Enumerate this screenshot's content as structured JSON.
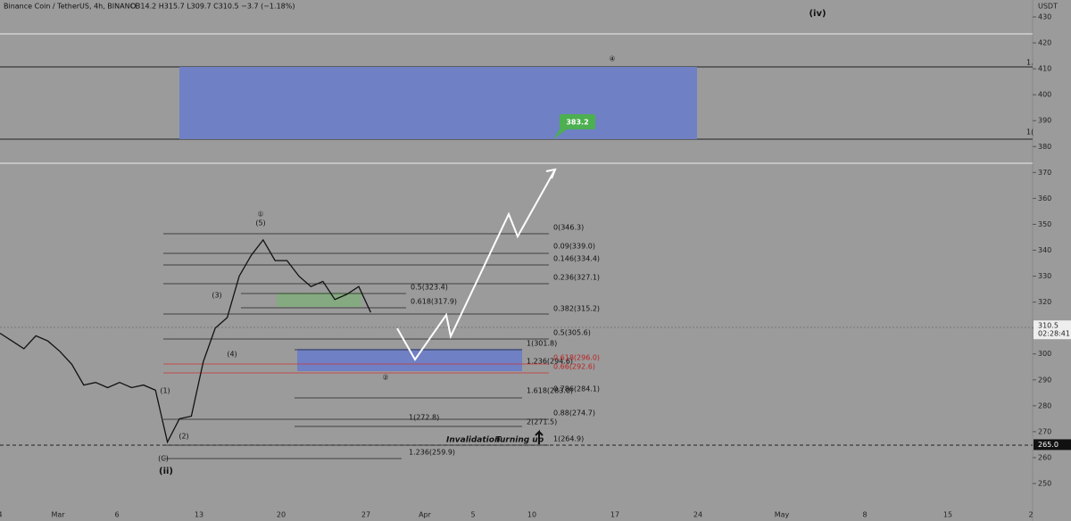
{
  "header": {
    "symbol": "Binance Coin / TetherUS, 4h, BINANCE",
    "ohlc": "O314.2 H315.7 L309.7 C310.5 −3.7 (−1.18%)"
  },
  "price_axis": {
    "unit": "USDT",
    "ylim": [
      250,
      430
    ],
    "ticks": [
      250,
      260,
      270,
      280,
      290,
      300,
      310,
      320,
      330,
      340,
      350,
      360,
      370,
      380,
      390,
      400,
      410,
      420,
      430
    ],
    "last_price": 310.5,
    "countdown": "02:28:41",
    "marked_level": {
      "value": 265,
      "label": "265.0"
    }
  },
  "date_axis": [
    "4",
    "Mar",
    "6",
    "13",
    "20",
    "27",
    "Apr",
    "5",
    "10",
    "17",
    "24",
    "May",
    "8",
    "15",
    "2"
  ],
  "price": {
    "values": [
      308,
      305,
      302,
      307,
      305,
      301,
      296,
      288,
      289,
      287,
      289,
      287,
      288,
      286,
      266,
      275,
      276,
      297,
      310,
      314,
      330,
      338,
      344,
      336,
      336,
      330,
      326,
      328,
      321,
      323,
      326,
      316
    ]
  },
  "fib_labels": [
    "0(346.3)",
    "0.09(339.0)",
    "0.146(334.4)",
    "0.236(327.1)",
    "0.382(315.2)",
    "0.5(305.6)",
    "0.5(323.4)",
    "0.618(317.9)",
    "1(301.8)",
    "1.236(294.6)",
    "0.618(296.0)",
    "0.66(292.6)",
    "1.618(283.0)",
    "0.786(284.1)",
    "0.88(274.7)",
    "1(272.8)",
    "2(271.5)",
    "1(264.9)",
    "1.236(259.9)"
  ],
  "wave_labels": [
    "①",
    "(5)",
    "(3)",
    "(4)",
    "(1)",
    "(2)",
    "(C)",
    "(ii)",
    "(iv)",
    "④",
    "②"
  ],
  "annotations": {
    "target": 383.2,
    "invalidation": "Invalidation",
    "turning": "Turning up"
  },
  "side_labels": [
    "1.",
    "1("
  ]
}
